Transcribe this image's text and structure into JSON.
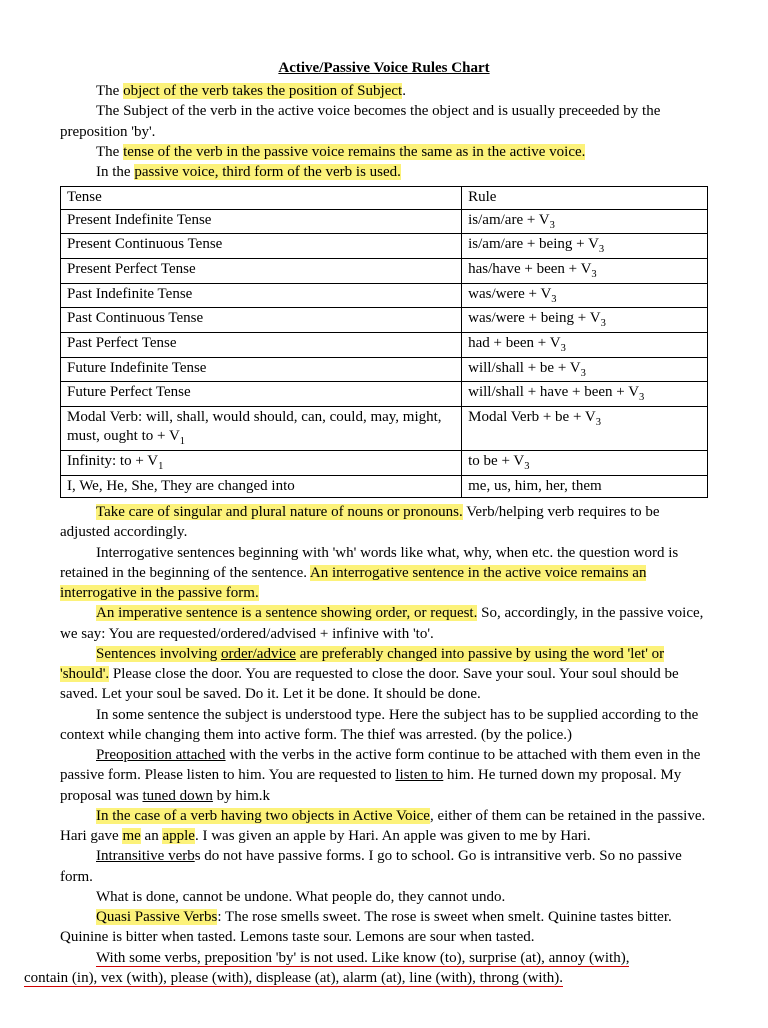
{
  "title": "Active/Passive Voice Rules Chart",
  "intro": {
    "p1a": "The ",
    "p1b_hl": "object of the verb takes the position of Subject",
    "p1c": ".",
    "p2": "The Subject of the verb in the active voice becomes the object and is usually preceeded by the preposition 'by'.",
    "p3a": "The ",
    "p3b_hl": "tense of the verb in the passive voice remains the same as in the active voice.",
    "p4a": "In the ",
    "p4b_hl": "passive voice, third form of the verb is used."
  },
  "table": {
    "head_tense": "Tense",
    "head_rule": "Rule",
    "rows": [
      {
        "tense": "Present Indefinite Tense",
        "rule": "is/am/are + V",
        "sub": "3"
      },
      {
        "tense": "Present Continuous Tense",
        "rule": "is/am/are + being + V",
        "sub": "3"
      },
      {
        "tense": "Present Perfect Tense",
        "rule": "has/have + been + V",
        "sub": "3"
      },
      {
        "tense": "Past Indefinite Tense",
        "rule": "was/were + V",
        "sub": "3"
      },
      {
        "tense": "Past Continuous Tense",
        "rule": "was/were + being + V",
        "sub": "3"
      },
      {
        "tense": "Past Perfect Tense",
        "rule": "had + been + V",
        "sub": "3"
      },
      {
        "tense": "Future Indefinite Tense",
        "rule": "will/shall + be + V",
        "sub": "3"
      },
      {
        "tense": "Future Perfect Tense",
        "rule": "will/shall + have + been + V",
        "sub": "3"
      },
      {
        "tense": "Modal Verb: will, shall, would should, can, could, may, might, must, ought to + V",
        "tense_sub": "1",
        "rule": "Modal Verb + be + V",
        "sub": "3"
      },
      {
        "tense": "Infinity: to + V",
        "tense_sub": "1",
        "rule": "to be + V",
        "sub": "3"
      },
      {
        "tense": "I, We, He, She, They are changed into",
        "rule": "me, us, him, her, them",
        "sub": ""
      }
    ]
  },
  "body": {
    "p5_hl": "Take care of singular and plural nature of nouns or pronouns.",
    "p5b": " Verb/helping verb requires to be adjusted accordingly.",
    "p6a": "Interrogative sentences beginning with 'wh' words like what, why, when etc. the question word is retained in the beginning of the sentence.  ",
    "p6b_hl": "An interrogative sentence in the active voice remains an interrogative in the passive form.",
    "p7a_hl": "An imperative sentence is a sentence showing order, or request.",
    "p7b": " So, accordingly, in the passive voice, we say: You are requested/ordered/advised + infinive with 'to'.",
    "p8a_hl1": "Sentences involving ",
    "p8a_hl_ul": "order/advice",
    "p8a_hl2": " are preferably changed into passive by using the word 'let' or 'should'.",
    "p8b": " Please close the door. You are requested to close the door. Save your soul. Your soul should be saved. Let your soul be saved. Do it. Let it be done. It should be done.",
    "p9": "In some sentence the subject is understood type. Here the subject has to be supplied according to the context while changing them into active form. The thief was arrested. (by the police.)",
    "p10a_ul": "Preoposition attached",
    "p10b": " with the verbs in the active form continue to be attached with them even in the passive form. Please listen to him. You are requested to ",
    "p10c_ul": "listen to",
    "p10d": " him. He turned down my proposal. My proposal was ",
    "p10e_ul": "tuned down",
    "p10f": " by him.k",
    "p11a_hl": "In the case of a verb having two objects in Active Voice",
    "p11b": ", either of them can be retained in the passive. Hari gave ",
    "p11c_hl": "me",
    "p11d": " an ",
    "p11e_hl": "apple",
    "p11f": ". I was given an apple by Hari. An apple was given to me by Hari.",
    "p12a": " ",
    "p12b_ul": "Intransitive verb",
    "p12c": "s do not have passive forms.  I go to school. Go is intransitive verb. So no passive form.",
    "p13": "What is done, cannot be undone. What people do, they cannot undo.",
    "p14a_hl": "Quasi Passive Verbs",
    "p14b": ": The rose smells sweet. The rose is sweet when smelt. Quinine tastes bitter. Quinine is bitter when tasted. Lemons taste sour. Lemons are sour when tasted.",
    "p15a_red": "With some verbs, preposition 'by' is not used. Like know (to), surprise (at), annoy (with),",
    "p15b_red": "contain (in), vex (with), please (with), displease (at), alarm (at), line (with), throng (with)."
  }
}
